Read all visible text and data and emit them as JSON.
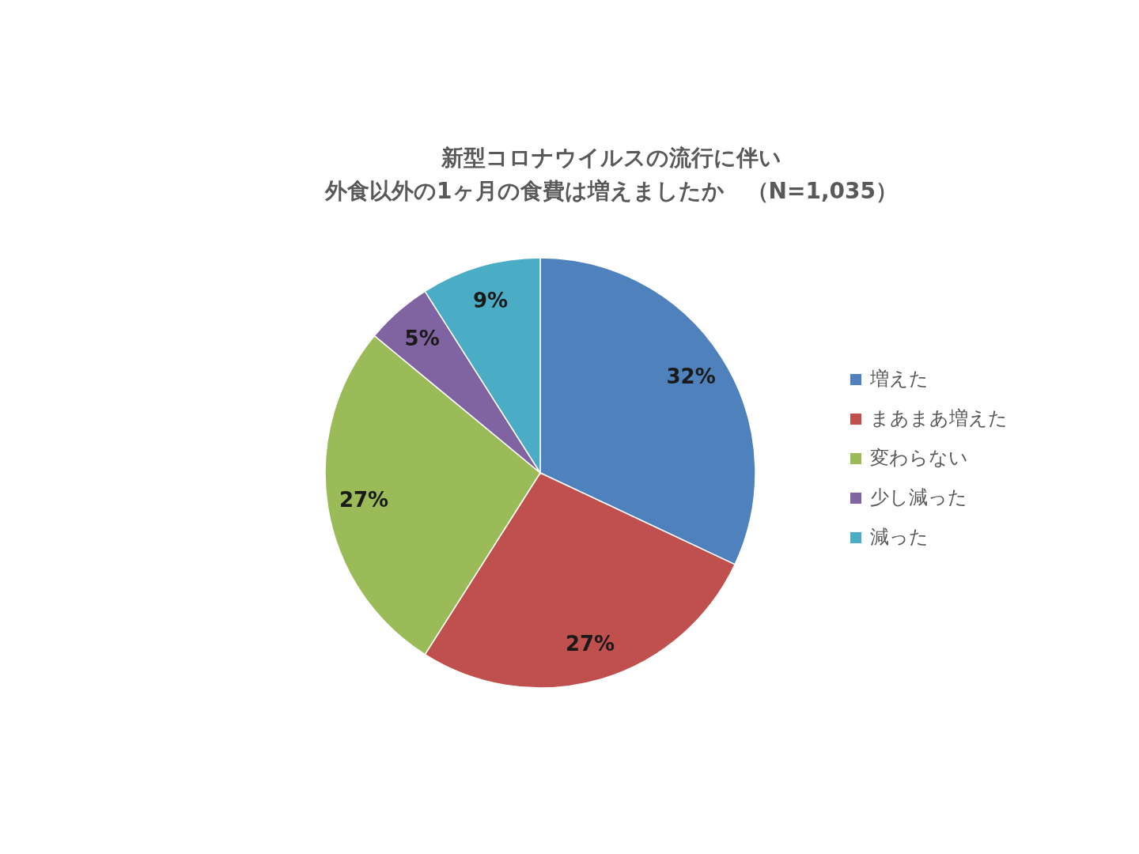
{
  "chart_data": {
    "type": "pie",
    "title": "新型コロナウイルスの流行に伴い",
    "subtitle": "外食以外の1ヶ月の食費は増えましたか　（N=1,035）",
    "categories": [
      "増えた",
      "まあまあ増えた",
      "変わらない",
      "少し減った",
      "減った"
    ],
    "values": [
      32,
      27,
      27,
      5,
      9
    ],
    "colors": [
      "#4f81bd",
      "#c0504d",
      "#9bbb59",
      "#8064a2",
      "#4bacc6"
    ],
    "value_labels": [
      "32%",
      "27%",
      "27%",
      "5%",
      "9%"
    ],
    "legend": "right"
  }
}
